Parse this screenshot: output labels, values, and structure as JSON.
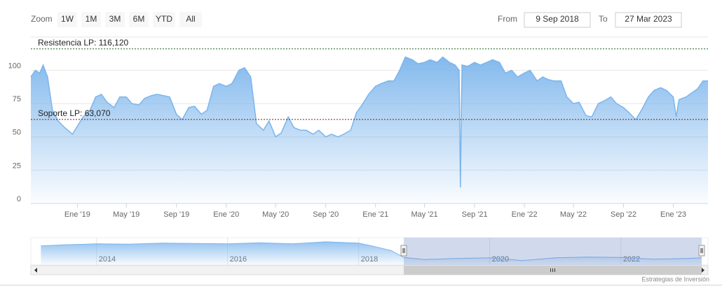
{
  "chart_data": {
    "type": "area",
    "range_selector": {
      "zoom_label": "Zoom",
      "buttons": [
        "1W",
        "1M",
        "3M",
        "6M",
        "YTD",
        "All"
      ],
      "from_label": "From",
      "from": "9 Sep 2018",
      "to_label": "To",
      "to": "27 Mar 2023"
    },
    "series": [
      {
        "color": "#7cb5ec",
        "x": [
          "2018-09-09",
          "2018-09-20",
          "2018-10-01",
          "2018-10-09",
          "2018-10-20",
          "2018-11-01",
          "2018-11-15",
          "2018-12-01",
          "2018-12-20",
          "2019-01-01",
          "2019-01-15",
          "2019-02-01",
          "2019-02-15",
          "2019-03-01",
          "2019-03-15",
          "2019-04-01",
          "2019-04-15",
          "2019-05-01",
          "2019-05-15",
          "2019-06-01",
          "2019-06-15",
          "2019-07-01",
          "2019-07-15",
          "2019-08-01",
          "2019-08-15",
          "2019-09-01",
          "2019-09-15",
          "2019-10-01",
          "2019-10-15",
          "2019-11-01",
          "2019-11-15",
          "2019-12-01",
          "2019-12-15",
          "2020-01-01",
          "2020-01-15",
          "2020-02-01",
          "2020-02-15",
          "2020-03-01",
          "2020-03-15",
          "2020-04-01",
          "2020-04-15",
          "2020-05-01",
          "2020-05-15",
          "2020-06-01",
          "2020-06-15",
          "2020-07-01",
          "2020-07-15",
          "2020-08-01",
          "2020-08-15",
          "2020-09-01",
          "2020-09-15",
          "2020-10-01",
          "2020-10-15",
          "2020-11-01",
          "2020-11-15",
          "2020-12-01",
          "2020-12-15",
          "2021-01-01",
          "2021-01-15",
          "2021-02-01",
          "2021-02-15",
          "2021-03-01",
          "2021-03-15",
          "2021-04-01",
          "2021-04-15",
          "2021-05-01",
          "2021-05-15",
          "2021-06-01",
          "2021-06-15",
          "2021-07-01",
          "2021-07-15",
          "2021-07-25",
          "2021-07-28",
          "2021-08-01",
          "2021-08-15",
          "2021-09-01",
          "2021-09-15",
          "2021-10-01",
          "2021-10-15",
          "2021-11-01",
          "2021-11-15",
          "2021-12-01",
          "2021-12-15",
          "2022-01-01",
          "2022-01-15",
          "2022-02-01",
          "2022-02-15",
          "2022-03-01",
          "2022-03-15",
          "2022-04-01",
          "2022-04-15",
          "2022-05-01",
          "2022-05-15",
          "2022-06-01",
          "2022-06-15",
          "2022-07-01",
          "2022-07-15",
          "2022-08-01",
          "2022-08-15",
          "2022-09-01",
          "2022-09-15",
          "2022-10-01",
          "2022-10-15",
          "2022-11-01",
          "2022-11-15",
          "2022-12-01",
          "2022-12-15",
          "2023-01-01",
          "2023-01-08",
          "2023-01-15",
          "2023-02-01",
          "2023-02-15",
          "2023-03-01",
          "2023-03-15",
          "2023-03-27"
        ],
        "values": [
          95,
          100,
          98,
          104,
          95,
          70,
          62,
          57,
          52,
          58,
          65,
          70,
          80,
          82,
          76,
          72,
          80,
          80,
          75,
          74,
          79,
          81,
          82,
          81,
          80,
          67,
          63,
          72,
          73,
          67,
          70,
          88,
          90,
          88,
          90,
          100,
          102,
          95,
          60,
          55,
          62,
          50,
          53,
          65,
          57,
          55,
          55,
          52,
          55,
          50,
          52,
          50,
          52,
          55,
          68,
          75,
          82,
          88,
          90,
          92,
          92,
          100,
          110,
          108,
          105,
          106,
          108,
          106,
          110,
          106,
          104,
          100,
          12,
          104,
          103,
          106,
          104,
          106,
          108,
          106,
          98,
          100,
          95,
          98,
          100,
          92,
          95,
          93,
          92,
          92,
          80,
          75,
          76,
          66,
          65,
          75,
          77,
          80,
          75,
          72,
          68,
          63,
          70,
          80,
          85,
          87,
          85,
          80,
          65,
          78,
          80,
          83,
          86,
          92,
          92
        ]
      }
    ],
    "xlim": [
      "2018-09-09",
      "2023-03-27"
    ],
    "xticks": [
      {
        "value": "2019-01-01",
        "label": "Ene '19"
      },
      {
        "value": "2019-05-01",
        "label": "May '19"
      },
      {
        "value": "2019-09-01",
        "label": "Sep '19"
      },
      {
        "value": "2020-01-01",
        "label": "Ene '20"
      },
      {
        "value": "2020-05-01",
        "label": "May '20"
      },
      {
        "value": "2020-09-01",
        "label": "Sep '20"
      },
      {
        "value": "2021-01-01",
        "label": "Ene '21"
      },
      {
        "value": "2021-05-01",
        "label": "May '21"
      },
      {
        "value": "2021-09-01",
        "label": "Sep '21"
      },
      {
        "value": "2022-01-01",
        "label": "Ene '22"
      },
      {
        "value": "2022-05-01",
        "label": "May '22"
      },
      {
        "value": "2022-09-01",
        "label": "Sep '22"
      },
      {
        "value": "2023-01-01",
        "label": "Ene '23"
      }
    ],
    "ylim": [
      0,
      125
    ],
    "yticks": [
      0,
      25,
      50,
      75,
      100
    ],
    "grid": true,
    "plot_lines": [
      {
        "value": 116.12,
        "label": "Resistencia LP: 116,120",
        "color": "#1a5c1a"
      },
      {
        "value": 63.07,
        "label": "Soporte LP: 63,070",
        "color": "#7a1a1a"
      }
    ],
    "navigator": {
      "x": [
        "2013-02-25",
        "2013-07-01",
        "2014-01-01",
        "2014-07-01",
        "2015-01-01",
        "2015-07-01",
        "2016-01-01",
        "2016-07-01",
        "2017-01-01",
        "2017-07-01",
        "2018-01-01",
        "2018-04-01",
        "2018-07-01",
        "2018-09-09",
        "2019-01-01",
        "2019-07-01",
        "2020-01-01",
        "2020-07-01",
        "2021-01-01",
        "2021-07-01",
        "2022-01-01",
        "2022-07-01",
        "2023-01-01",
        "2023-03-27"
      ],
      "values": [
        270,
        285,
        300,
        295,
        310,
        305,
        300,
        315,
        300,
        330,
        310,
        260,
        200,
        100,
        70,
        85,
        95,
        55,
        95,
        105,
        100,
        75,
        85,
        95
      ],
      "ylim": [
        -10,
        390
      ],
      "xlim": [
        "2012-12-31",
        "2023-05-01"
      ],
      "xticks": [
        {
          "value": "2014-01-01",
          "label": "2014"
        },
        {
          "value": "2016-01-01",
          "label": "2016"
        },
        {
          "value": "2018-01-01",
          "label": "2018"
        },
        {
          "value": "2020-01-01",
          "label": "2020"
        },
        {
          "value": "2022-01-01",
          "label": "2022"
        }
      ]
    },
    "credits": "Estrategias de Inversión"
  }
}
